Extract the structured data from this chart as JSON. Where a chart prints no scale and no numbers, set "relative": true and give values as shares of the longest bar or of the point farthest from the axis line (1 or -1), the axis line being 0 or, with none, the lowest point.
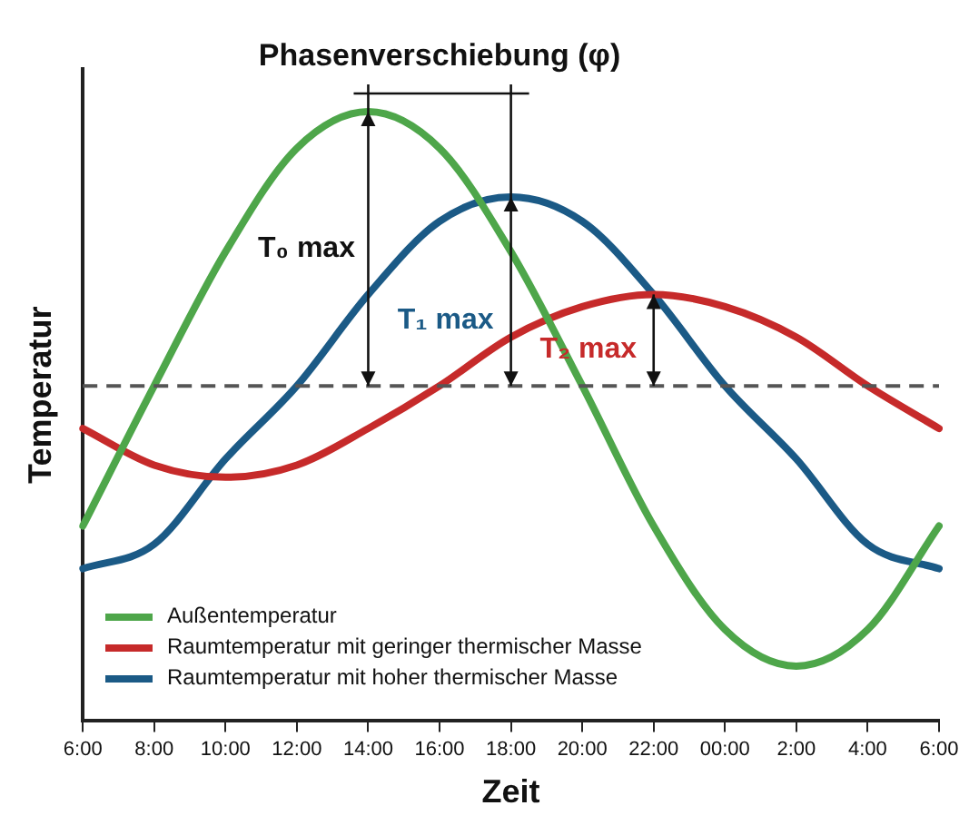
{
  "chart_data": {
    "type": "line",
    "relative": true,
    "xlabel": "Zeit",
    "ylabel": "Temperatur",
    "categories": [
      "6:00",
      "8:00",
      "10:00",
      "12:00",
      "14:00",
      "16:00",
      "18:00",
      "20:00",
      "22:00",
      "00:00",
      "2:00",
      "4:00",
      "6:00"
    ],
    "series": [
      {
        "name": "Außentemperatur",
        "color": "#4ea64a",
        "values": [
          0.32,
          0.55,
          0.77,
          0.94,
          1.0,
          0.94,
          0.77,
          0.55,
          0.32,
          0.15,
          0.09,
          0.15,
          0.32
        ]
      },
      {
        "name": "Raumtemperatur mit geringer thermischer Masse",
        "color": "#c62a2a",
        "values": [
          0.48,
          0.42,
          0.4,
          0.42,
          0.48,
          0.55,
          0.63,
          0.68,
          0.7,
          0.68,
          0.63,
          0.55,
          0.48
        ]
      },
      {
        "name": "Raumtemperatur mit hoher thermischer Masse",
        "color": "#1b5a86",
        "values": [
          0.25,
          0.29,
          0.43,
          0.55,
          0.7,
          0.82,
          0.86,
          0.82,
          0.7,
          0.55,
          0.43,
          0.29,
          0.25
        ]
      }
    ],
    "ref_lines": [
      {
        "axis": "y",
        "value": 0.55,
        "color": "#555555",
        "line_style": "dashed"
      }
    ],
    "annotations": [
      "Phasenverschiebung (φ)",
      "T₀ max",
      "T₁ max",
      "T₂ max"
    ],
    "legend": "bottom left",
    "line_style": "solid",
    "marker": "none"
  }
}
